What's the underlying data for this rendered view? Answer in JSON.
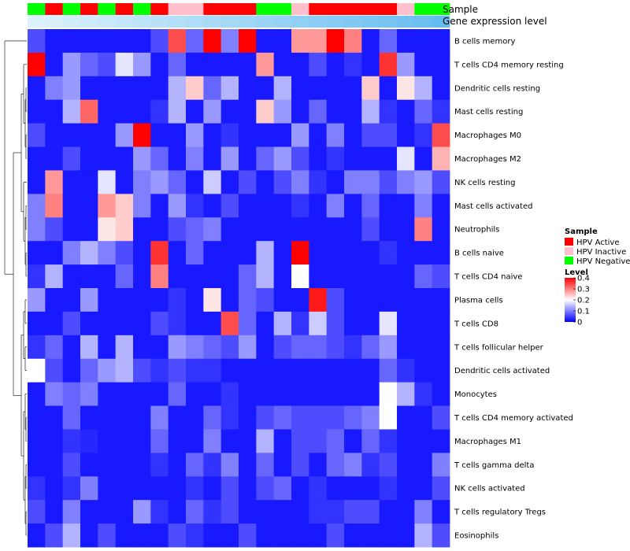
{
  "chart_data": {
    "type": "heatmap",
    "title": "",
    "annotation_tracks": [
      "Sample",
      "Gene expression level"
    ],
    "sample_track": {
      "label": "Sample",
      "groups": [
        "HPV Negative",
        "HPV Active",
        "HPV Negative",
        "HPV Active",
        "HPV Negative",
        "HPV Active",
        "HPV Negative",
        "HPV Active",
        "HPV Inactive",
        "HPV Inactive",
        "HPV Active",
        "HPV Active",
        "HPV Active",
        "HPV Negative",
        "HPV Negative",
        "HPV Inactive",
        "HPV Active",
        "HPV Active",
        "HPV Active",
        "HPV Active",
        "HPV Active",
        "HPV Inactive",
        "HPV Negative",
        "HPV Negative"
      ]
    },
    "expression_track": {
      "label": "Gene expression level",
      "values": [
        0.02,
        0.06,
        0.1,
        0.14,
        0.18,
        0.22,
        0.26,
        0.3,
        0.34,
        0.38,
        0.42,
        0.46,
        0.5,
        0.54,
        0.58,
        0.62,
        0.66,
        0.7,
        0.74,
        0.78,
        0.82,
        0.86,
        0.9,
        0.96
      ]
    },
    "rows": [
      "B cells memory",
      "T cells CD4 memory resting",
      "Dendritic cells resting",
      "Mast cells resting",
      "Macrophages M0",
      "Macrophages M2",
      "NK cells resting",
      "Mast cells activated",
      "Neutrophils",
      "B cells naive",
      "T cells CD4 naive",
      "Plasma cells",
      "T cells CD8",
      "T cells follicular helper",
      "Dendritic cells activated",
      "Monocytes",
      "T cells CD4 memory activated",
      "Macrophages M1",
      "T cells gamma delta",
      "NK cells activated",
      "T cells regulatory  Tregs",
      "Eosinophils"
    ],
    "values": [
      [
        0.06,
        0.02,
        0.02,
        0.02,
        0.02,
        0.02,
        0.02,
        0.06,
        0.34,
        0.08,
        0.4,
        0.1,
        0.4,
        0.02,
        0.02,
        0.28,
        0.28,
        0.4,
        0.3,
        0.02,
        0.08,
        0.02,
        0.02,
        0.02
      ],
      [
        0.4,
        0.02,
        0.12,
        0.08,
        0.06,
        0.18,
        0.12,
        0.02,
        0.08,
        0.02,
        0.02,
        0.02,
        0.02,
        0.28,
        0.02,
        0.02,
        0.06,
        0.02,
        0.04,
        0.02,
        0.36,
        0.12,
        0.02,
        0.02
      ],
      [
        0.02,
        0.1,
        0.12,
        0.02,
        0.02,
        0.02,
        0.02,
        0.02,
        0.14,
        0.24,
        0.08,
        0.14,
        0.02,
        0.02,
        0.14,
        0.02,
        0.02,
        0.02,
        0.02,
        0.24,
        0.02,
        0.22,
        0.14,
        0.02
      ],
      [
        0.02,
        0.02,
        0.14,
        0.32,
        0.02,
        0.02,
        0.02,
        0.04,
        0.14,
        0.02,
        0.12,
        0.02,
        0.02,
        0.24,
        0.12,
        0.02,
        0.08,
        0.02,
        0.02,
        0.14,
        0.04,
        0.02,
        0.08,
        0.04
      ],
      [
        0.06,
        0.02,
        0.02,
        0.02,
        0.02,
        0.12,
        0.4,
        0.02,
        0.02,
        0.12,
        0.02,
        0.04,
        0.02,
        0.02,
        0.02,
        0.12,
        0.02,
        0.1,
        0.02,
        0.06,
        0.06,
        0.02,
        0.04,
        0.34
      ],
      [
        0.02,
        0.02,
        0.06,
        0.02,
        0.02,
        0.02,
        0.12,
        0.08,
        0.02,
        0.1,
        0.02,
        0.12,
        0.02,
        0.08,
        0.12,
        0.06,
        0.02,
        0.04,
        0.02,
        0.02,
        0.02,
        0.18,
        0.02,
        0.26
      ],
      [
        0.02,
        0.28,
        0.02,
        0.02,
        0.18,
        0.02,
        0.1,
        0.12,
        0.08,
        0.02,
        0.16,
        0.02,
        0.06,
        0.02,
        0.06,
        0.1,
        0.04,
        0.02,
        0.1,
        0.1,
        0.06,
        0.1,
        0.12,
        0.06
      ],
      [
        0.1,
        0.3,
        0.02,
        0.02,
        0.28,
        0.24,
        0.1,
        0.02,
        0.12,
        0.04,
        0.02,
        0.06,
        0.02,
        0.02,
        0.02,
        0.04,
        0.02,
        0.1,
        0.02,
        0.08,
        0.02,
        0.02,
        0.1,
        0.02
      ],
      [
        0.1,
        0.06,
        0.02,
        0.02,
        0.22,
        0.24,
        0.02,
        0.02,
        0.06,
        0.08,
        0.1,
        0.02,
        0.02,
        0.02,
        0.02,
        0.02,
        0.02,
        0.02,
        0.02,
        0.06,
        0.02,
        0.02,
        0.3,
        0.02
      ],
      [
        0.02,
        0.02,
        0.1,
        0.14,
        0.1,
        0.06,
        0.02,
        0.36,
        0.02,
        0.08,
        0.02,
        0.02,
        0.02,
        0.14,
        0.02,
        0.4,
        0.02,
        0.02,
        0.02,
        0.02,
        0.04,
        0.02,
        0.02,
        0.02
      ],
      [
        0.04,
        0.14,
        0.02,
        0.02,
        0.02,
        0.08,
        0.02,
        0.3,
        0.02,
        0.02,
        0.02,
        0.02,
        0.08,
        0.14,
        0.02,
        0.2,
        0.02,
        0.02,
        0.02,
        0.02,
        0.02,
        0.02,
        0.08,
        0.06
      ],
      [
        0.12,
        0.02,
        0.02,
        0.12,
        0.02,
        0.02,
        0.02,
        0.02,
        0.04,
        0.02,
        0.22,
        0.02,
        0.08,
        0.06,
        0.02,
        0.02,
        0.38,
        0.06,
        0.02,
        0.02,
        0.02,
        0.02,
        0.02,
        0.02
      ],
      [
        0.02,
        0.02,
        0.06,
        0.02,
        0.02,
        0.02,
        0.02,
        0.06,
        0.04,
        0.02,
        0.02,
        0.34,
        0.08,
        0.02,
        0.14,
        0.04,
        0.16,
        0.06,
        0.02,
        0.02,
        0.18,
        0.02,
        0.02,
        0.02
      ],
      [
        0.04,
        0.08,
        0.02,
        0.14,
        0.02,
        0.14,
        0.02,
        0.02,
        0.12,
        0.1,
        0.08,
        0.06,
        0.12,
        0.02,
        0.06,
        0.08,
        0.08,
        0.06,
        0.04,
        0.08,
        0.12,
        0.02,
        0.02,
        0.02
      ],
      [
        0.2,
        0.06,
        0.02,
        0.08,
        0.12,
        0.14,
        0.06,
        0.04,
        0.06,
        0.04,
        0.04,
        0.02,
        0.02,
        0.02,
        0.02,
        0.02,
        0.02,
        0.02,
        0.02,
        0.02,
        0.08,
        0.04,
        0.02,
        0.02
      ],
      [
        0.02,
        0.1,
        0.08,
        0.1,
        0.02,
        0.02,
        0.02,
        0.02,
        0.08,
        0.02,
        0.02,
        0.04,
        0.02,
        0.02,
        0.02,
        0.02,
        0.02,
        0.02,
        0.02,
        0.02,
        0.2,
        0.14,
        0.04,
        0.02
      ],
      [
        0.02,
        0.02,
        0.08,
        0.02,
        0.02,
        0.02,
        0.02,
        0.1,
        0.02,
        0.02,
        0.08,
        0.04,
        0.02,
        0.06,
        0.08,
        0.06,
        0.06,
        0.06,
        0.08,
        0.1,
        0.2,
        0.02,
        0.02,
        0.06
      ],
      [
        0.02,
        0.02,
        0.04,
        0.03,
        0.02,
        0.02,
        0.02,
        0.08,
        0.02,
        0.02,
        0.1,
        0.02,
        0.02,
        0.14,
        0.02,
        0.06,
        0.06,
        0.08,
        0.02,
        0.08,
        0.04,
        0.02,
        0.02,
        0.02
      ],
      [
        0.02,
        0.02,
        0.06,
        0.02,
        0.02,
        0.02,
        0.02,
        0.04,
        0.02,
        0.08,
        0.04,
        0.1,
        0.02,
        0.08,
        0.02,
        0.06,
        0.02,
        0.08,
        0.1,
        0.04,
        0.06,
        0.02,
        0.02,
        0.1
      ],
      [
        0.04,
        0.02,
        0.04,
        0.1,
        0.02,
        0.02,
        0.02,
        0.02,
        0.02,
        0.04,
        0.02,
        0.06,
        0.02,
        0.06,
        0.08,
        0.02,
        0.04,
        0.02,
        0.02,
        0.02,
        0.04,
        0.02,
        0.02,
        0.06
      ],
      [
        0.06,
        0.02,
        0.1,
        0.02,
        0.02,
        0.02,
        0.12,
        0.04,
        0.02,
        0.08,
        0.04,
        0.06,
        0.02,
        0.02,
        0.02,
        0.02,
        0.04,
        0.04,
        0.06,
        0.06,
        0.02,
        0.02,
        0.1,
        0.02
      ],
      [
        0.02,
        0.06,
        0.14,
        0.02,
        0.06,
        0.02,
        0.02,
        0.02,
        0.06,
        0.04,
        0.02,
        0.02,
        0.06,
        0.02,
        0.02,
        0.02,
        0.02,
        0.06,
        0.02,
        0.02,
        0.02,
        0.02,
        0.14,
        0.06
      ]
    ],
    "color_scale": {
      "label": "Level",
      "min": 0,
      "max": 0.4,
      "low_color": "#0000ff",
      "mid_color": "#ffffff",
      "high_color": "#ff0000",
      "ticks": [
        "0",
        "0.1",
        "0.2",
        "0.3",
        "0.4"
      ]
    },
    "legend": {
      "position": "right",
      "sample_title": "Sample",
      "entries": [
        {
          "label": "HPV Active",
          "color": "#ff0000"
        },
        {
          "label": "HPV Inactive",
          "color": "#ffc0cb"
        },
        {
          "label": "HPV Negative",
          "color": "#00ff00"
        }
      ]
    },
    "expression_colors": {
      "low": "#dff3fc",
      "high": "#5fbaf0"
    }
  }
}
